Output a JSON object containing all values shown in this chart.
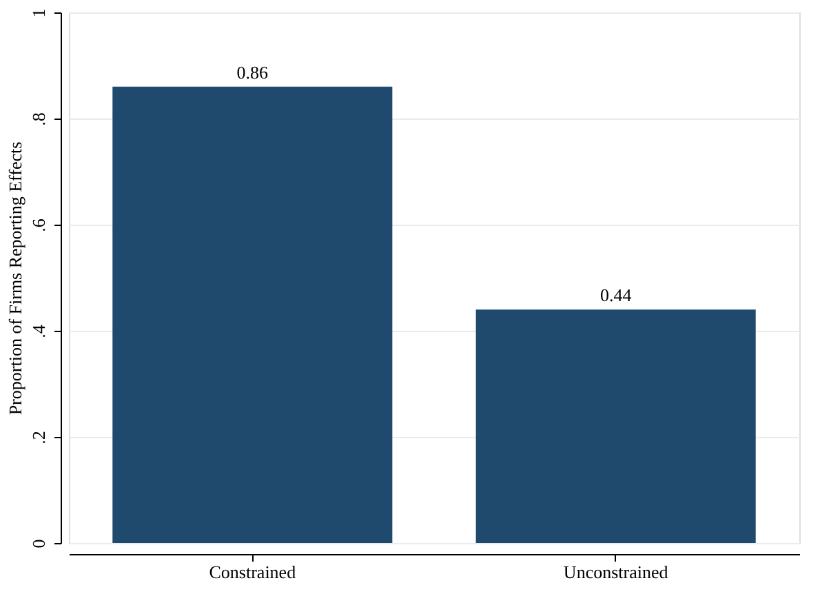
{
  "chart_data": {
    "type": "bar",
    "ylabel": "Proportion of Firms Reporting Effects",
    "categories": [
      "Constrained",
      "Unconstrained"
    ],
    "values": [
      0.86,
      0.44
    ],
    "color": "#1f4a6e",
    "ylim": [
      0,
      1
    ],
    "yticks": [
      0,
      {
        "value": 0.2,
        "label": ".2"
      },
      {
        "value": 0.4,
        "label": ".4"
      },
      {
        "value": 0.6,
        "label": ".6"
      },
      {
        "value": 0.8,
        "label": ".8"
      },
      1
    ],
    "grid": "y",
    "data_labels": true
  }
}
